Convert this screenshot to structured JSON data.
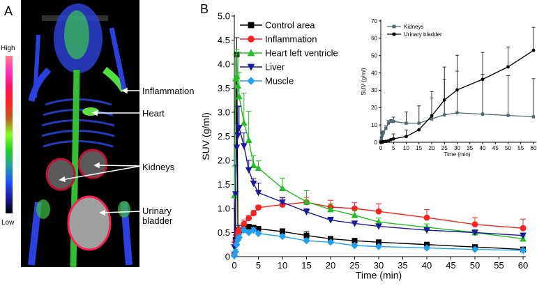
{
  "panel_a": {
    "label": "A",
    "colorbar": {
      "high": "High",
      "low": "Low",
      "colors": [
        "#000000",
        "#1a1aa0",
        "#2050ff",
        "#20a0a0",
        "#20d020",
        "#80ff20",
        "#c06020",
        "#ff2020",
        "#ff1060",
        "#ff30c0",
        "#ff8080"
      ]
    },
    "annotations": [
      "Inflammation",
      "Heart",
      "Kidneys",
      "Urinary",
      "bladder"
    ]
  },
  "chart_data": [
    {
      "panel_label": "B",
      "type": "line",
      "xlabel": "Time (min)",
      "ylabel": "SUV (g/ml)",
      "xlim": [
        0,
        60
      ],
      "ylim": [
        0,
        5
      ],
      "xticks": [
        "0",
        "5",
        "10",
        "15",
        "20",
        "25",
        "30",
        "35",
        "40",
        "45",
        "50",
        "55",
        "60"
      ],
      "yticks": [
        "0",
        "0.5",
        "1.0",
        "1.5",
        "2.0",
        "2.5",
        "3.0",
        "3.5",
        "4.0",
        "4.5",
        "5.0"
      ],
      "legend_position": "top-left",
      "x": [
        0,
        0.25,
        0.5,
        0.75,
        1,
        2,
        3,
        4,
        5,
        10,
        15,
        20,
        25,
        30,
        40,
        50,
        60
      ],
      "series": [
        {
          "name": "Control area",
          "color": "#000000",
          "marker": "square",
          "values": [
            0.05,
            0.35,
            4.2,
            0.5,
            0.55,
            0.6,
            0.62,
            0.6,
            0.58,
            0.52,
            0.44,
            0.37,
            0.33,
            0.3,
            0.25,
            0.2,
            0.15
          ],
          "err": [
            0.02,
            0.1,
            0.35,
            0.1,
            0.1,
            0.05,
            0.05,
            0.05,
            0.04,
            0.06,
            0.08,
            0.04,
            0.05,
            0.03,
            0.03,
            0.03,
            0.03
          ]
        },
        {
          "name": "Inflammation",
          "color": "#ff2020",
          "marker": "circle",
          "values": [
            0.05,
            0.3,
            0.45,
            0.5,
            0.55,
            0.68,
            0.8,
            0.9,
            1.02,
            1.08,
            1.13,
            1.03,
            1.0,
            0.94,
            0.81,
            0.67,
            0.59
          ],
          "err": [
            0.02,
            0.05,
            0.05,
            0.05,
            0.05,
            0.08,
            0.05,
            0.06,
            0.05,
            0.14,
            0.1,
            0.14,
            0.12,
            0.16,
            0.17,
            0.14,
            0.19
          ]
        },
        {
          "name": "Heart left ventricle",
          "color": "#20c020",
          "marker": "triangle-up",
          "values": [
            1.27,
            3.7,
            3.75,
            3.55,
            3.33,
            2.78,
            2.42,
            1.9,
            1.84,
            1.42,
            1.14,
            0.98,
            0.86,
            0.72,
            0.61,
            0.5,
            0.37
          ],
          "err": [
            0.6,
            0.5,
            0.55,
            0.7,
            0.5,
            0.62,
            0.6,
            0.2,
            0.15,
            0.21,
            0.23,
            0.12,
            0.1,
            0.08,
            0.07,
            0.06,
            0.05
          ]
        },
        {
          "name": "Liver",
          "color": "#1a1a9a",
          "marker": "triangle-down",
          "values": [
            0.2,
            1.3,
            2.27,
            2.52,
            2.68,
            2.3,
            1.8,
            1.52,
            1.33,
            1.13,
            0.93,
            0.76,
            0.69,
            0.63,
            0.55,
            0.5,
            0.44
          ],
          "err": [
            0.1,
            0.6,
            0.5,
            0.6,
            0.45,
            0.27,
            0.2,
            0.1,
            0.2,
            0.1,
            0.07,
            0.06,
            0.05,
            0.05,
            0.05,
            0.04,
            0.04
          ]
        },
        {
          "name": "Muscle",
          "color": "#20a0f0",
          "marker": "diamond",
          "values": [
            0.02,
            0.1,
            0.25,
            0.35,
            0.4,
            0.55,
            0.5,
            0.55,
            0.48,
            0.42,
            0.33,
            0.3,
            0.23,
            0.21,
            0.18,
            0.15,
            0.13
          ],
          "err": [
            0.02,
            0.05,
            0.05,
            0.05,
            0.05,
            0.05,
            0.05,
            0.05,
            0.04,
            0.04,
            0.04,
            0.03,
            0.03,
            0.03,
            0.03,
            0.03,
            0.03
          ]
        }
      ]
    },
    {
      "type": "line",
      "inset": true,
      "xlabel": "Time (min)",
      "ylabel": "SUV (g/ml)",
      "xlim": [
        0,
        60
      ],
      "ylim": [
        0,
        70
      ],
      "xticks": [
        "0",
        "5",
        "10",
        "15",
        "20",
        "25",
        "30",
        "35",
        "40",
        "45",
        "50",
        "55",
        "60"
      ],
      "yticks": [
        "0",
        "10",
        "20",
        "30",
        "40",
        "50",
        "60",
        "70"
      ],
      "legend_position": "top-left",
      "x": [
        0,
        0.25,
        0.5,
        0.75,
        1,
        2,
        3,
        4,
        5,
        10,
        15,
        20,
        25,
        30,
        40,
        50,
        60
      ],
      "series": [
        {
          "name": "Kidneys",
          "color": "#4a6a70",
          "marker": "square",
          "values": [
            0.5,
            2,
            4,
            5,
            5.5,
            8,
            11,
            12,
            12,
            11,
            11,
            13.5,
            15.8,
            17,
            16.2,
            15.5,
            14.7
          ],
          "err": [
            0.5,
            1,
            1,
            1,
            1,
            1.5,
            1.5,
            1,
            2.5,
            6.5,
            10,
            12,
            20.5,
            24,
            23,
            23,
            22
          ]
        },
        {
          "name": "Urinary bladder",
          "color": "#000000",
          "marker": "circle",
          "values": [
            0,
            0,
            0.1,
            0.2,
            0.3,
            0.5,
            0.8,
            1.5,
            2,
            3.3,
            7.2,
            15.2,
            24.4,
            30.2,
            36.3,
            43.5,
            53
          ],
          "err": [
            0,
            0,
            0,
            0,
            0,
            0,
            0,
            0.5,
            2.8,
            3.8,
            0,
            14,
            19,
            20,
            15.5,
            11.5,
            13.3
          ]
        }
      ]
    }
  ]
}
